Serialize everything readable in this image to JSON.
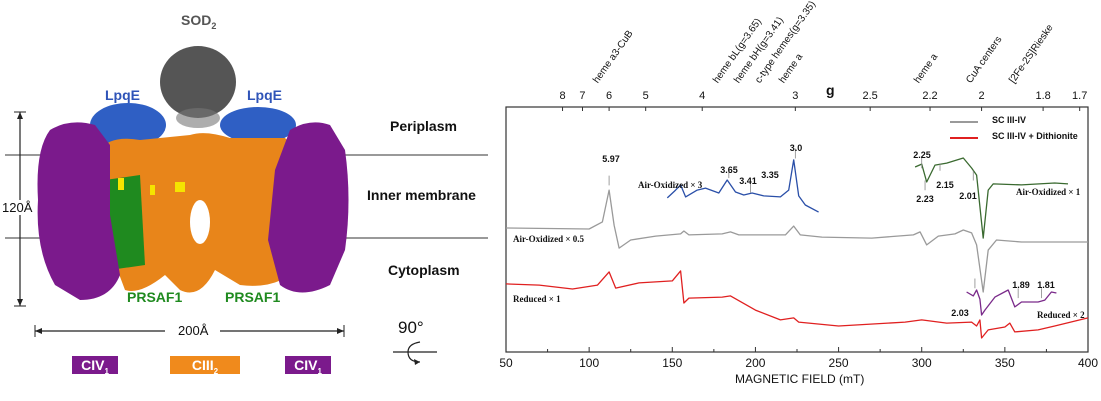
{
  "structure_panel": {
    "labels": {
      "sod": "SOD",
      "sod_sub": "2",
      "lpqe_left": "LpqE",
      "lpqe_right": "LpqE",
      "prsaf1_left": "PRSAF1",
      "prsaf1_right": "PRSAF1",
      "height_scale": "120Å",
      "width_scale": "200Å",
      "rotation": "90°"
    },
    "regions": [
      "Periplasm",
      "Inner membrane",
      "Cytoplasm"
    ],
    "complex_legend": [
      {
        "label": "CIV",
        "sub": "1",
        "color": "#7b1a8c"
      },
      {
        "label": "CIII",
        "sub": "2",
        "color": "#f08a1c"
      },
      {
        "label": "CIV",
        "sub": "1",
        "color": "#7b1a8c"
      }
    ],
    "colors": {
      "civ": "#7b1a8c",
      "ciii": "#f08a1c",
      "lpqe": "#2f5fc4",
      "prsaf1": "#1f8a1f",
      "sod": "#555555",
      "heme": "#f5e400"
    }
  },
  "chart_data": {
    "type": "line",
    "xlabel": "MAGNETIC FIELD (mT)",
    "xlim": [
      50,
      400
    ],
    "xticks": [
      50,
      100,
      150,
      200,
      250,
      300,
      350,
      400
    ],
    "ylim": [
      0,
      100
    ],
    "grid": false,
    "legend_position": "top-right",
    "top_axis": {
      "label": "g",
      "ticks": [
        {
          "g": "8",
          "field": 84
        },
        {
          "g": "7",
          "field": 96
        },
        {
          "g": "6",
          "field": 112
        },
        {
          "g": "5",
          "field": 134
        },
        {
          "g": "4",
          "field": 168
        },
        {
          "g": "3",
          "field": 224
        },
        {
          "g": "2.5",
          "field": 269
        },
        {
          "g": "2.2",
          "field": 305
        },
        {
          "g": "2",
          "field": 336
        },
        {
          "g": "1.8",
          "field": 373
        },
        {
          "g": "1.7",
          "field": 395
        }
      ],
      "assignments": [
        {
          "text": "heme a3-CuB",
          "field": 112
        },
        {
          "text": "heme bL(g=3.65)",
          "field": 184
        },
        {
          "text": "heme bH(g=3.41)",
          "field": 197
        },
        {
          "text": "c-type hemes(g=3.35)",
          "field": 204
        },
        {
          "text": "heme a",
          "field": 224
        },
        {
          "text": "heme a",
          "field": 305
        },
        {
          "text": "CuA centers",
          "field": 336
        },
        {
          "text": "[2Fe-2S]Rieske",
          "field": 362
        }
      ]
    },
    "series": [
      {
        "name": "SC III-IV",
        "color": "#9a9a9a",
        "trace_label": "Air-Oxidized × 0.5",
        "points": [
          [
            50,
            50.6
          ],
          [
            100,
            50.2
          ],
          [
            108,
            53.1
          ],
          [
            112,
            66.1
          ],
          [
            115,
            51.8
          ],
          [
            118,
            42.4
          ],
          [
            125,
            45.7
          ],
          [
            140,
            47.3
          ],
          [
            155,
            48.2
          ],
          [
            157,
            49.4
          ],
          [
            160,
            47.8
          ],
          [
            180,
            48.2
          ],
          [
            185,
            49.0
          ],
          [
            190,
            47.8
          ],
          [
            218,
            47.8
          ],
          [
            223,
            51.4
          ],
          [
            227,
            47.8
          ],
          [
            240,
            46.9
          ],
          [
            270,
            46.5
          ],
          [
            295,
            47.8
          ],
          [
            299,
            49.0
          ],
          [
            303,
            43.7
          ],
          [
            310,
            47.3
          ],
          [
            320,
            48.2
          ],
          [
            325,
            49.8
          ],
          [
            330,
            48.6
          ],
          [
            333,
            43.7
          ],
          [
            337,
            24.5
          ],
          [
            340,
            41.6
          ],
          [
            345,
            45.7
          ],
          [
            360,
            44.9
          ],
          [
            400,
            44.9
          ]
        ]
      },
      {
        "name": "SC III-IV + Dithionite",
        "color": "#e02020",
        "trace_label": "Reduced × 1",
        "points": [
          [
            50,
            27.8
          ],
          [
            70,
            27.3
          ],
          [
            90,
            25.7
          ],
          [
            105,
            27.3
          ],
          [
            112,
            32.7
          ],
          [
            116,
            26.1
          ],
          [
            130,
            28.2
          ],
          [
            150,
            29.0
          ],
          [
            155,
            33.1
          ],
          [
            157,
            20.0
          ],
          [
            160,
            22.0
          ],
          [
            180,
            22.4
          ],
          [
            185,
            22.9
          ],
          [
            200,
            17.1
          ],
          [
            215,
            13.1
          ],
          [
            223,
            13.9
          ],
          [
            226,
            12.2
          ],
          [
            250,
            10.6
          ],
          [
            290,
            12.2
          ],
          [
            300,
            13.1
          ],
          [
            315,
            11.8
          ],
          [
            330,
            12.2
          ],
          [
            333,
            10.6
          ],
          [
            335,
            13.1
          ],
          [
            336,
            5.7
          ],
          [
            340,
            9.0
          ],
          [
            350,
            10.2
          ],
          [
            353,
            11.8
          ],
          [
            356,
            8.2
          ],
          [
            370,
            9.0
          ],
          [
            380,
            10.6
          ],
          [
            400,
            13.9
          ]
        ]
      }
    ],
    "insets": [
      {
        "color": "#2a4fa8",
        "trace_label": "Air-Oxidized × 3",
        "points": [
          [
            147,
            62.9
          ],
          [
            152,
            66.1
          ],
          [
            155,
            68.2
          ],
          [
            158,
            63.3
          ],
          [
            165,
            66.1
          ],
          [
            170,
            66.9
          ],
          [
            178,
            64.9
          ],
          [
            183,
            70.2
          ],
          [
            188,
            65.3
          ],
          [
            193,
            64.1
          ],
          [
            198,
            64.9
          ],
          [
            205,
            63.7
          ],
          [
            215,
            63.3
          ],
          [
            220,
            66.1
          ],
          [
            223,
            78.4
          ],
          [
            226,
            63.7
          ],
          [
            230,
            60.0
          ],
          [
            238,
            57.1
          ]
        ],
        "peak_labels": [
          "3.65",
          "3.41",
          "3.35",
          "3.0"
        ]
      },
      {
        "color": "#3a6a30",
        "trace_label": "Air-Oxidized × 1",
        "points": [
          [
            296,
            75.5
          ],
          [
            300,
            76.7
          ],
          [
            303,
            69.4
          ],
          [
            308,
            76.3
          ],
          [
            315,
            77.1
          ],
          [
            325,
            79.2
          ],
          [
            330,
            75.1
          ],
          [
            333,
            72.2
          ],
          [
            337,
            46.5
          ],
          [
            340,
            66.1
          ],
          [
            343,
            68.6
          ],
          [
            360,
            68.2
          ],
          [
            380,
            69.0
          ],
          [
            388,
            68.6
          ]
        ],
        "peak_labels": [
          "2.25",
          "2.23",
          "2.15",
          "2.01"
        ]
      },
      {
        "color": "#7a2a8a",
        "trace_label": "Reduced × 2",
        "points": [
          [
            327,
            24.5
          ],
          [
            331,
            22.9
          ],
          [
            333,
            25.3
          ],
          [
            335,
            21.6
          ],
          [
            336,
            15.1
          ],
          [
            338,
            17.1
          ],
          [
            344,
            22.4
          ],
          [
            352,
            25.3
          ],
          [
            356,
            18.4
          ],
          [
            360,
            20.4
          ],
          [
            370,
            20.4
          ],
          [
            374,
            21.2
          ],
          [
            378,
            24.5
          ],
          [
            381,
            24.1
          ]
        ],
        "peak_labels": [
          "2.03",
          "1.89",
          "1.81"
        ]
      }
    ],
    "main_peak_label": "5.97"
  }
}
